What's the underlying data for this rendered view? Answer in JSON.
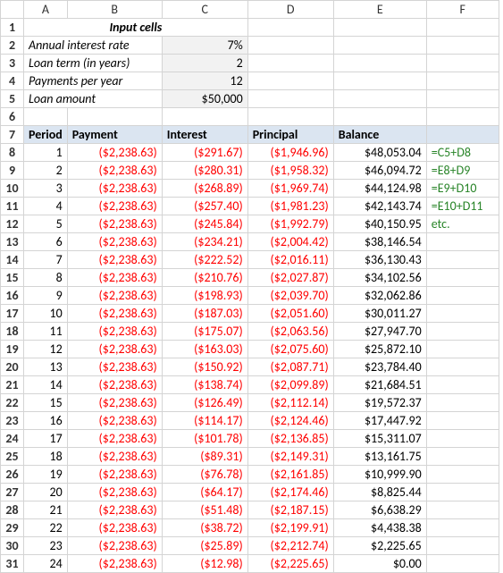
{
  "columns": {
    "headers": [
      "",
      "A",
      "B",
      "C",
      "D",
      "E",
      "F"
    ],
    "widths": [
      26,
      48,
      106,
      96,
      96,
      104,
      81
    ]
  },
  "input_section": {
    "title": "Input cells",
    "rows": [
      {
        "label": "Annual interest rate",
        "value": "7%"
      },
      {
        "label": "Loan term (in years)",
        "value": "2"
      },
      {
        "label": "Payments per year",
        "value": "12"
      },
      {
        "label": "Loan amount",
        "value": "$50,000"
      }
    ]
  },
  "table": {
    "headers": [
      "Period",
      "Payment",
      "Interest",
      "Principal",
      "Balance"
    ],
    "rows": [
      {
        "period": "1",
        "payment": "($2,238.63)",
        "interest": "($291.67)",
        "principal": "($1,946.96)",
        "balance": "$48,053.04",
        "formula": "=C5+D8"
      },
      {
        "period": "2",
        "payment": "($2,238.63)",
        "interest": "($280.31)",
        "principal": "($1,958.32)",
        "balance": "$46,094.72",
        "formula": "=E8+D9"
      },
      {
        "period": "3",
        "payment": "($2,238.63)",
        "interest": "($268.89)",
        "principal": "($1,969.74)",
        "balance": "$44,124.98",
        "formula": "=E9+D10"
      },
      {
        "period": "4",
        "payment": "($2,238.63)",
        "interest": "($257.40)",
        "principal": "($1,981.23)",
        "balance": "$42,143.74",
        "formula": "=E10+D11"
      },
      {
        "period": "5",
        "payment": "($2,238.63)",
        "interest": "($245.84)",
        "principal": "($1,992.79)",
        "balance": "$40,150.95",
        "formula": "etc."
      },
      {
        "period": "6",
        "payment": "($2,238.63)",
        "interest": "($234.21)",
        "principal": "($2,004.42)",
        "balance": "$38,146.54",
        "formula": ""
      },
      {
        "period": "7",
        "payment": "($2,238.63)",
        "interest": "($222.52)",
        "principal": "($2,016.11)",
        "balance": "$36,130.43",
        "formula": ""
      },
      {
        "period": "8",
        "payment": "($2,238.63)",
        "interest": "($210.76)",
        "principal": "($2,027.87)",
        "balance": "$34,102.56",
        "formula": ""
      },
      {
        "period": "9",
        "payment": "($2,238.63)",
        "interest": "($198.93)",
        "principal": "($2,039.70)",
        "balance": "$32,062.86",
        "formula": ""
      },
      {
        "period": "10",
        "payment": "($2,238.63)",
        "interest": "($187.03)",
        "principal": "($2,051.60)",
        "balance": "$30,011.27",
        "formula": ""
      },
      {
        "period": "11",
        "payment": "($2,238.63)",
        "interest": "($175.07)",
        "principal": "($2,063.56)",
        "balance": "$27,947.70",
        "formula": ""
      },
      {
        "period": "12",
        "payment": "($2,238.63)",
        "interest": "($163.03)",
        "principal": "($2,075.60)",
        "balance": "$25,872.10",
        "formula": ""
      },
      {
        "period": "13",
        "payment": "($2,238.63)",
        "interest": "($150.92)",
        "principal": "($2,087.71)",
        "balance": "$23,784.40",
        "formula": ""
      },
      {
        "period": "14",
        "payment": "($2,238.63)",
        "interest": "($138.74)",
        "principal": "($2,099.89)",
        "balance": "$21,684.51",
        "formula": ""
      },
      {
        "period": "15",
        "payment": "($2,238.63)",
        "interest": "($126.49)",
        "principal": "($2,112.14)",
        "balance": "$19,572.37",
        "formula": ""
      },
      {
        "period": "16",
        "payment": "($2,238.63)",
        "interest": "($114.17)",
        "principal": "($2,124.46)",
        "balance": "$17,447.92",
        "formula": ""
      },
      {
        "period": "17",
        "payment": "($2,238.63)",
        "interest": "($101.78)",
        "principal": "($2,136.85)",
        "balance": "$15,311.07",
        "formula": ""
      },
      {
        "period": "18",
        "payment": "($2,238.63)",
        "interest": "($89.31)",
        "principal": "($2,149.31)",
        "balance": "$13,161.75",
        "formula": ""
      },
      {
        "period": "19",
        "payment": "($2,238.63)",
        "interest": "($76.78)",
        "principal": "($2,161.85)",
        "balance": "$10,999.90",
        "formula": ""
      },
      {
        "period": "20",
        "payment": "($2,238.63)",
        "interest": "($64.17)",
        "principal": "($2,174.46)",
        "balance": "$8,825.44",
        "formula": ""
      },
      {
        "period": "21",
        "payment": "($2,238.63)",
        "interest": "($51.48)",
        "principal": "($2,187.15)",
        "balance": "$6,638.29",
        "formula": ""
      },
      {
        "period": "22",
        "payment": "($2,238.63)",
        "interest": "($38.72)",
        "principal": "($2,199.91)",
        "balance": "$4,438.38",
        "formula": ""
      },
      {
        "period": "23",
        "payment": "($2,238.63)",
        "interest": "($25.89)",
        "principal": "($2,212.74)",
        "balance": "$2,225.65",
        "formula": ""
      },
      {
        "period": "24",
        "payment": "($2,238.63)",
        "interest": "($12.98)",
        "principal": "($2,225.65)",
        "balance": "$0.00",
        "formula": ""
      }
    ]
  }
}
